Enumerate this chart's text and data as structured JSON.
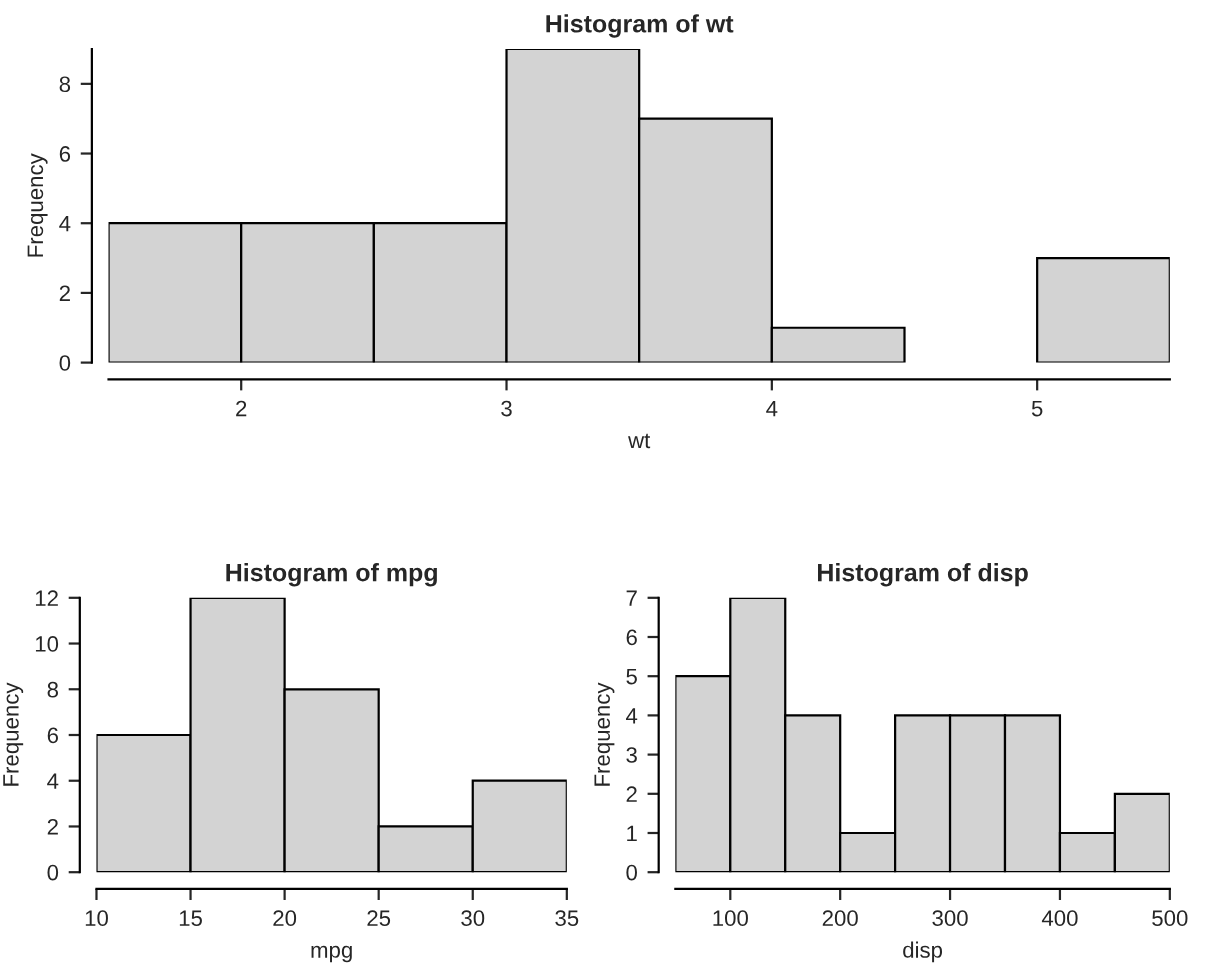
{
  "chart_data": [
    {
      "type": "histogram",
      "title": "Histogram of wt",
      "xlabel": "wt",
      "ylabel": "Frequency",
      "color": "#d3d3d3",
      "bins": [
        1.5,
        2.0,
        2.5,
        3.0,
        3.5,
        4.0,
        4.5,
        5.0,
        5.5
      ],
      "values": [
        4,
        4,
        4,
        9,
        7,
        1,
        0,
        3
      ],
      "xlim": [
        1.5,
        5.5
      ],
      "xticks": [
        2,
        3,
        4,
        5
      ],
      "ylim": [
        0,
        9
      ],
      "yticks": [
        0,
        2,
        4,
        6,
        8
      ],
      "grid": false
    },
    {
      "type": "histogram",
      "title": "Histogram of mpg",
      "xlabel": "mpg",
      "ylabel": "Frequency",
      "color": "#d3d3d3",
      "bins": [
        10,
        15,
        20,
        25,
        30,
        35
      ],
      "values": [
        6,
        12,
        8,
        2,
        4
      ],
      "xlim": [
        10,
        35
      ],
      "xticks": [
        10,
        15,
        20,
        25,
        30,
        35
      ],
      "ylim": [
        0,
        12
      ],
      "yticks": [
        0,
        2,
        4,
        6,
        8,
        10,
        12
      ],
      "grid": false
    },
    {
      "type": "histogram",
      "title": "Histogram of disp",
      "xlabel": "disp",
      "ylabel": "Frequency",
      "color": "#d3d3d3",
      "bins": [
        50,
        100,
        150,
        200,
        250,
        300,
        350,
        400,
        450,
        500
      ],
      "values": [
        5,
        7,
        4,
        1,
        4,
        4,
        4,
        1,
        2
      ],
      "xlim": [
        50,
        500
      ],
      "xticks": [
        100,
        200,
        300,
        400,
        500
      ],
      "ylim": [
        0,
        7
      ],
      "yticks": [
        0,
        1,
        2,
        3,
        4,
        5,
        6,
        7
      ],
      "grid": false
    }
  ]
}
